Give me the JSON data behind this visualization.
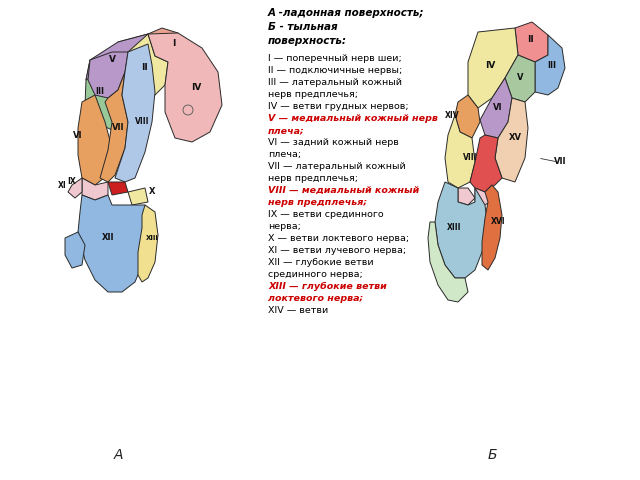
{
  "title_text_line1": "А -ладонная поверхность;",
  "title_text_line2": "Б - тыльная",
  "title_text_line3": "поверхность:",
  "legend_lines": [
    {
      "text": "I — поперечный нерв шеи;",
      "bold": false,
      "red": false
    },
    {
      "text": "II — подключичные нервы;",
      "bold": false,
      "red": false
    },
    {
      "text": "III — латеральный кожный нерв предплечья;",
      "bold": false,
      "red": false
    },
    {
      "text": "IV — ветви грудных нервов;",
      "bold": false,
      "red": false
    },
    {
      "text": "V — медиальный кожный нерв плеча;",
      "bold": true,
      "red": true
    },
    {
      "text": "VI — задний кожный нерв плеча;",
      "bold": false,
      "red": false
    },
    {
      "text": "VII — латеральный кожный нерв предплечья;",
      "bold": false,
      "red": false
    },
    {
      "text": "VIII — медиальный кожный нерв предплечья;",
      "bold": true,
      "red": true
    },
    {
      "text": "IX — ветви срединного нерва;",
      "bold": false,
      "red": false
    },
    {
      "text": "X — ветви локтевого нерва;",
      "bold": false,
      "red": false
    },
    {
      "text": "XI — ветви лучевого нерва;",
      "bold": false,
      "red": false
    },
    {
      "text": "XII — глубокие ветви срединного нерва;",
      "bold": false,
      "red": false
    },
    {
      "text": "XIII — глубокие ветви локтевого нерва;",
      "bold": true,
      "red": true
    },
    {
      "text": "XIV — ветви",
      "bold": false,
      "red": false
    }
  ],
  "label_A": "А",
  "label_B": "Б",
  "background_color": "#ffffff",
  "armA": {
    "shoulder": {
      "I_color": "#e8a090",
      "II_color": "#f0e8a0",
      "III_color": "#98c898",
      "IV_color": "#f0b8b8",
      "V_color": "#b898c8"
    },
    "forearm": {
      "VI_color": "#e8a060",
      "VII_color": "#e8a060",
      "VIII_color": "#b0c8e8"
    },
    "wrist": {
      "IX_color": "#f0c8d0",
      "X_color": "#f0e8a0",
      "XI_color": "#f0c8d0",
      "wrist_band_color": "#cc2020"
    },
    "hand": {
      "XII_color": "#90b8e0",
      "XIII_color": "#f0e090"
    }
  },
  "armB": {
    "shoulder": {
      "II_color": "#f09090",
      "III_color": "#90b8e0",
      "IV_color": "#f0e8a0",
      "V_color": "#a8c8a0",
      "VI_color": "#b898c8",
      "XIV_color": "#e8a060"
    },
    "forearm": {
      "VII_color": "#f0e8a0",
      "VIII_color": "#e05050",
      "XV_color": "#f0d0b0"
    },
    "hand": {
      "XIII_color": "#a0c8d8",
      "XVI_color": "#e07040",
      "fingers_color": "#d0e8c8"
    }
  }
}
